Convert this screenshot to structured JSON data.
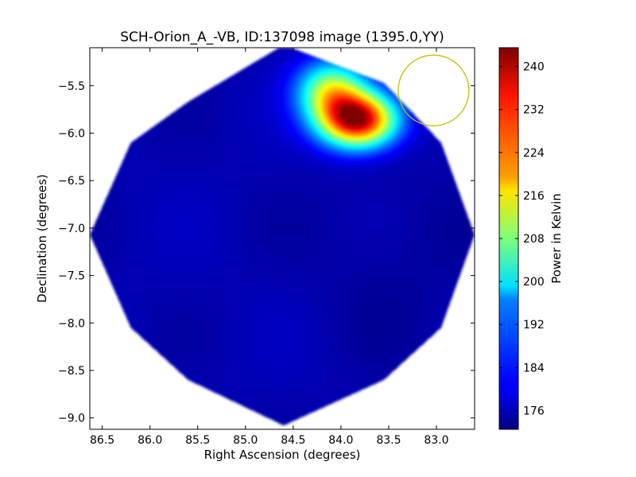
{
  "chart_data": {
    "type": "heatmap",
    "title": "SCH-Orion_A_-VB, ID:137098 image (1395.0,YY)",
    "xlabel": "Right Ascension (degrees)",
    "ylabel": "Declination (degrees)",
    "xlim": [
      86.63,
      82.6
    ],
    "ylim": [
      -9.12,
      -5.1
    ],
    "x_ticks": [
      "86.5",
      "86.0",
      "85.5",
      "85.0",
      "84.5",
      "84.0",
      "83.5",
      "83.0"
    ],
    "y_ticks": [
      "−5.5",
      "−6.0",
      "−6.5",
      "−7.0",
      "−7.5",
      "−8.0",
      "−8.5",
      "−9.0"
    ],
    "colorbar": {
      "label": "Power in Kelvin",
      "range": [
        172.5,
        243.5
      ],
      "ticks": [
        "240",
        "232",
        "224",
        "216",
        "208",
        "200",
        "192",
        "184",
        "176"
      ],
      "colormap": "jet"
    },
    "footprint": {
      "shape": "octagon",
      "center": [
        84.6,
        -7.07
      ],
      "vertices": [
        [
          84.6,
          -5.07
        ],
        [
          83.55,
          -5.47
        ],
        [
          82.95,
          -6.1
        ],
        [
          82.6,
          -7.07
        ],
        [
          82.95,
          -8.05
        ],
        [
          83.55,
          -8.6
        ],
        [
          84.6,
          -9.08
        ],
        [
          85.6,
          -8.6
        ],
        [
          86.2,
          -8.05
        ],
        [
          86.63,
          -7.07
        ],
        [
          86.2,
          -6.1
        ],
        [
          85.6,
          -5.67
        ]
      ],
      "background_value": 176
    },
    "sources": [
      {
        "ra": 83.82,
        "dec": -5.86,
        "peak": 241,
        "sigma_ra": 0.28,
        "sigma_dec": 0.2
      },
      {
        "ra": 84.1,
        "dec": -5.55,
        "peak": 210,
        "sigma_ra": 0.25,
        "sigma_dec": 0.22
      }
    ],
    "circle_annotation": {
      "ra": 83.03,
      "dec": -5.55,
      "radius": 0.37,
      "color": "#bfbf00"
    }
  }
}
